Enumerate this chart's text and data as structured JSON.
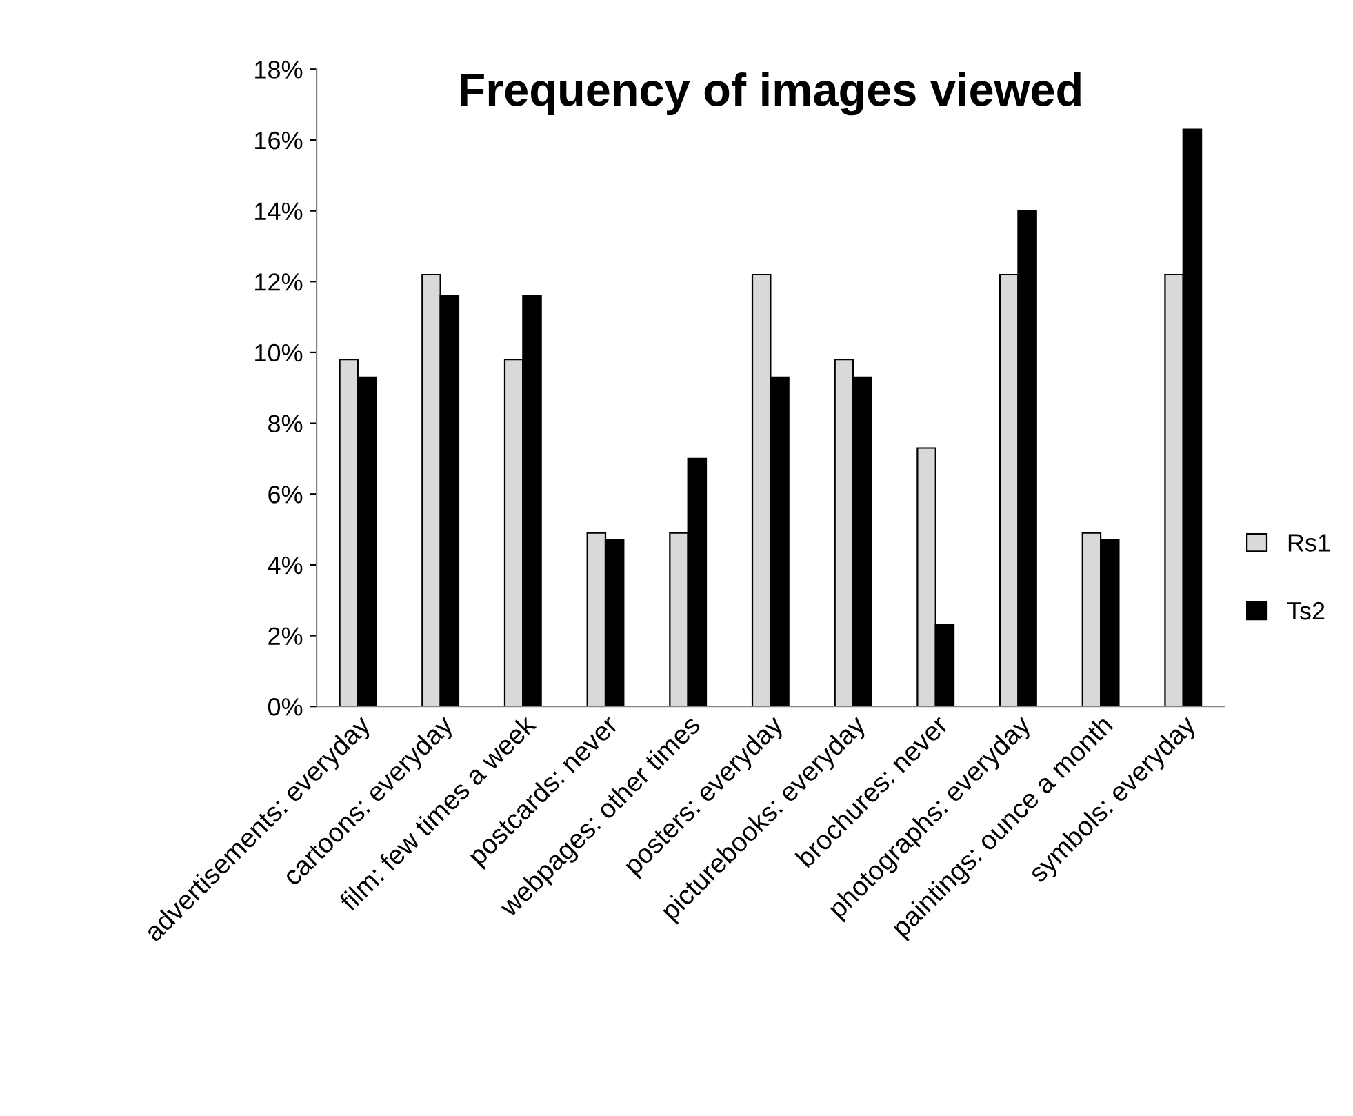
{
  "chart_data": {
    "type": "bar",
    "title": "Frequency of images viewed",
    "categories": [
      "advertisements: everyday",
      "cartoons: everyday",
      "film: few times a week",
      "postcards: never",
      "webpages: other times",
      "posters: everyday",
      "picturebooks: everyday",
      "brochures: never",
      "photographs: everyday",
      "paintings: ounce a month",
      "symbols: everyday"
    ],
    "series": [
      {
        "name": "Rs1",
        "color": "#d9d9d9",
        "values": [
          9.8,
          12.2,
          9.8,
          4.9,
          4.9,
          12.2,
          9.8,
          7.3,
          12.2,
          4.9,
          12.2
        ]
      },
      {
        "name": "Ts2",
        "color": "#000000",
        "values": [
          9.3,
          11.6,
          11.6,
          4.7,
          7.0,
          9.3,
          9.3,
          2.3,
          14.0,
          4.7,
          16.3
        ]
      }
    ],
    "ylim": [
      0,
      18
    ],
    "yticks": [
      {
        "value": 0,
        "label": "0%"
      },
      {
        "value": 2,
        "label": "2%"
      },
      {
        "value": 4,
        "label": "4%"
      },
      {
        "value": 6,
        "label": "6%"
      },
      {
        "value": 8,
        "label": "8%"
      },
      {
        "value": 10,
        "label": "10%"
      },
      {
        "value": 12,
        "label": "12%"
      },
      {
        "value": 14,
        "label": "14%"
      },
      {
        "value": 16,
        "label": "16%"
      },
      {
        "value": 18,
        "label": "18%"
      }
    ],
    "grid": false,
    "legend": "right"
  }
}
